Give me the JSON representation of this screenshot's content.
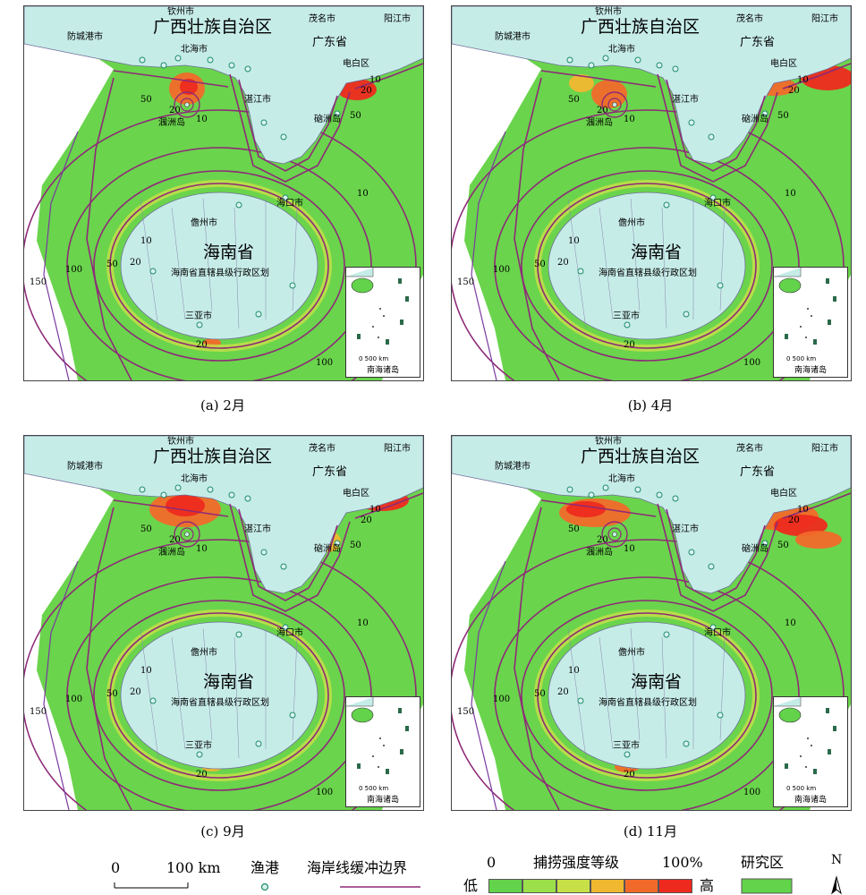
{
  "chart_data": {
    "type": "heatmap",
    "panels": [
      {
        "id": "a",
        "caption": "(a) 2月"
      },
      {
        "id": "b",
        "caption": "(b) 4月"
      },
      {
        "id": "c",
        "caption": "(c) 9月"
      },
      {
        "id": "d",
        "caption": "(d) 11月"
      }
    ],
    "place_labels": {
      "guangxi": "广西壮族自治区",
      "guangdong": "广东省",
      "hainan": "海南省",
      "hainan_sub": "海南省直辖县级行政区划",
      "qinzhou": "钦州市",
      "fangchenggang": "防城港市",
      "beihai": "北海市",
      "maoming": "茂名市",
      "yangjiang": "阳江市",
      "dianbai": "电白区",
      "zhanjiang": "湛江市",
      "weizhou": "涠洲岛",
      "naozhou": "硇洲岛",
      "haikou": "海口市",
      "danzhou": "儋州市",
      "sanya": "三亚市"
    },
    "contour_levels": [
      "10",
      "20",
      "50",
      "100",
      "150"
    ],
    "inset": {
      "label": "南海诸岛",
      "scale": "0  500 km"
    },
    "intensity_scale": {
      "title": "捕捞强度等级",
      "min_label": "0",
      "max_label": "100%",
      "low": "低",
      "high": "高",
      "colors": [
        "#62d34a",
        "#9be04a",
        "#c8e048",
        "#f0b830",
        "#f26a2a",
        "#ee2a1e"
      ]
    },
    "legend": {
      "scale_zero": "0",
      "scale_km": "100 km",
      "port": "渔港",
      "buffer": "海岸线缓冲边界",
      "study_area": "研究区",
      "north": "N"
    },
    "colors": {
      "land": "#c6ece8",
      "sea_zone": "#6ad44c",
      "contour": "#8e2a78",
      "port_fill": "#d8f3ef",
      "port_stroke": "#1d8b6a"
    }
  }
}
